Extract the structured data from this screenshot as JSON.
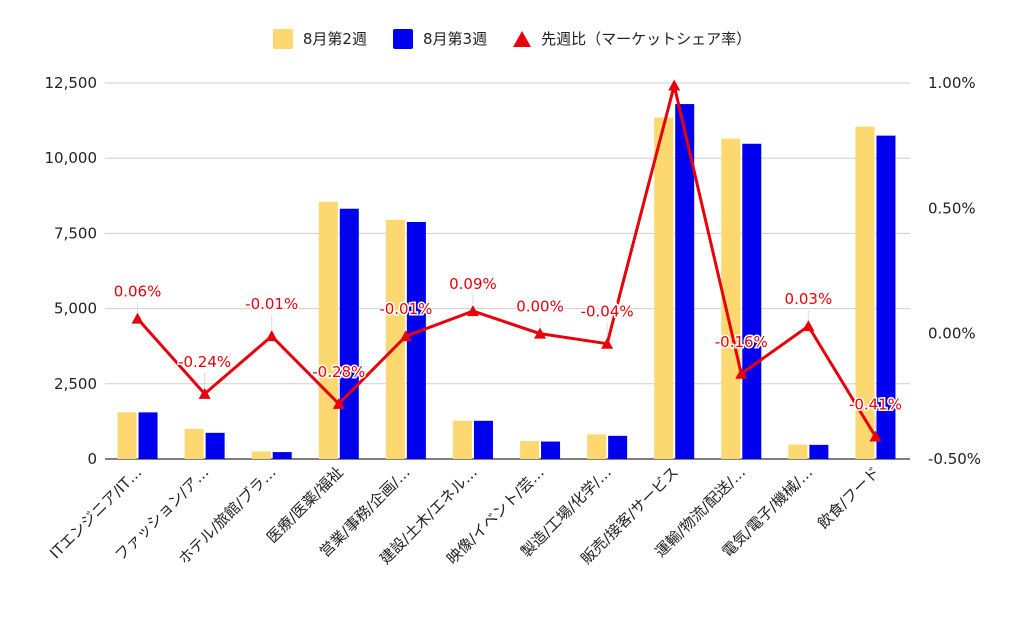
{
  "chart_data": {
    "type": "bar",
    "categories": [
      "ITエンジニア/IT…",
      "ファッション/ア…",
      "ホテル/旅館/ブラ…",
      "医療/医薬/福祉",
      "営業/事務/企画/…",
      "建設/土木/エネル…",
      "映像/イベント/芸…",
      "製造/工場/化学/…",
      "販売/接客/サービス",
      "運輸/物流/配送/…",
      "電気/電子/機械/…",
      "飲食/フード"
    ],
    "series": [
      {
        "name": "8月第2週",
        "type": "bar",
        "axis": "left",
        "color": "#fdd870",
        "values": [
          1550,
          1000,
          250,
          8550,
          7950,
          1270,
          600,
          820,
          11350,
          10650,
          480,
          11050
        ]
      },
      {
        "name": "8月第3週",
        "type": "bar",
        "axis": "left",
        "color": "#0000ee",
        "values": [
          1550,
          870,
          230,
          8320,
          7880,
          1270,
          580,
          770,
          11800,
          10480,
          470,
          10750
        ]
      },
      {
        "name": "先週比（マーケットシェア率）",
        "type": "line",
        "axis": "right",
        "color": "#e8000b",
        "values": [
          0.06,
          -0.24,
          -0.01,
          -0.28,
          -0.01,
          0.09,
          0.0,
          -0.04,
          0.99,
          -0.16,
          0.03,
          -0.41
        ],
        "labels": [
          "0.06%",
          "-0.24%",
          "-0.01%",
          "-0.28%",
          "-0.01%",
          "0.09%",
          "0.00%",
          "-0.04%",
          "",
          "-0.16%",
          "0.03%",
          "-0.41%"
        ]
      }
    ],
    "y_left": {
      "ylim": [
        0,
        12500
      ],
      "ticks": [
        "0",
        "2,500",
        "5,000",
        "7,500",
        "10,000",
        "12,500"
      ]
    },
    "y_right": {
      "ylim": [
        -0.5,
        1.0
      ],
      "ticks": [
        "-0.50%",
        "0.00%",
        "0.50%",
        "1.00%"
      ]
    },
    "legend_position": "top",
    "grid": true
  }
}
